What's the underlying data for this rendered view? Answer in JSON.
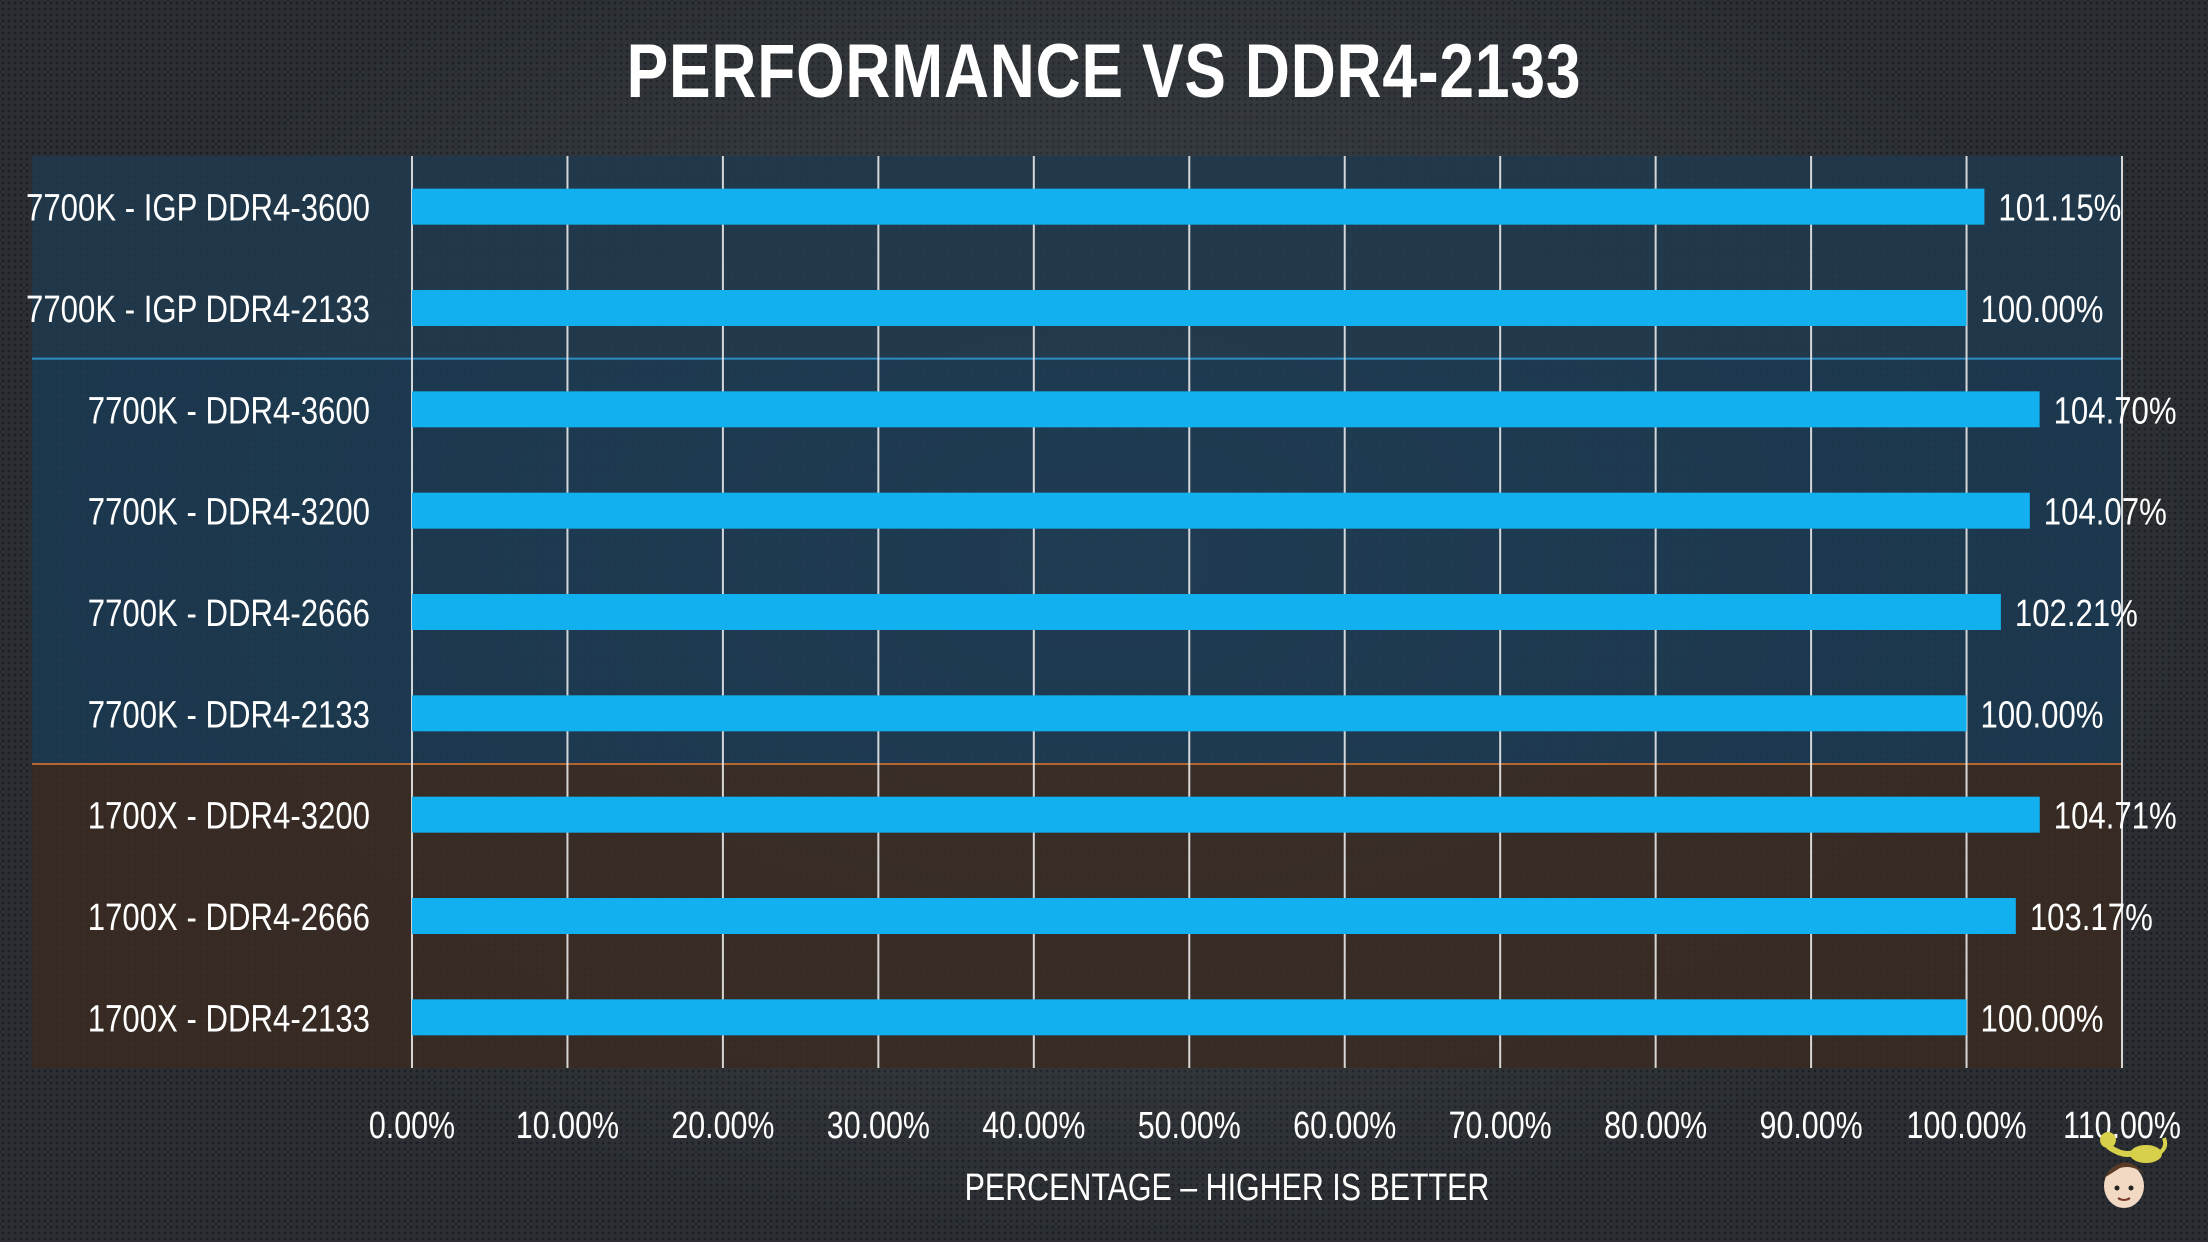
{
  "chart_data": {
    "type": "bar",
    "orientation": "horizontal",
    "title": "PERFORMANCE VS DDR4-2133",
    "xlabel": "PERCENTAGE – HIGHER IS BETTER",
    "ylabel": "",
    "xlim": [
      0,
      110
    ],
    "x_ticks": [
      0,
      10,
      20,
      30,
      40,
      50,
      60,
      70,
      80,
      90,
      100,
      110
    ],
    "x_tick_labels": [
      "0.00%",
      "10.00%",
      "20.00%",
      "30.00%",
      "40.00%",
      "50.00%",
      "60.00%",
      "70.00%",
      "80.00%",
      "90.00%",
      "100.00%",
      "110.00%"
    ],
    "grid": "vertical",
    "categories": [
      "7700K - IGP DDR4-3600",
      "7700K - IGP DDR4-2133",
      "7700K - DDR4-3600",
      "7700K - DDR4-3200",
      "7700K - DDR4-2666",
      "7700K - DDR4-2133",
      "1700X - DDR4-3200",
      "1700X - DDR4-2666",
      "1700X - DDR4-2133"
    ],
    "values": [
      101.15,
      100.0,
      104.7,
      104.07,
      102.21,
      100.0,
      104.71,
      103.17,
      100.0
    ],
    "value_labels": [
      "101.15%",
      "100.00%",
      "104.70%",
      "104.07%",
      "102.21%",
      "100.00%",
      "104.71%",
      "103.17%",
      "100.00%"
    ],
    "groups": [
      {
        "rows": [
          0,
          1
        ],
        "color": "#1e3a4d"
      },
      {
        "rows": [
          2,
          3,
          4,
          5
        ],
        "color": "#1a3a52"
      },
      {
        "rows": [
          6,
          7,
          8
        ],
        "color": "#3a2a22"
      }
    ],
    "bar_color": "#12b0ee"
  }
}
